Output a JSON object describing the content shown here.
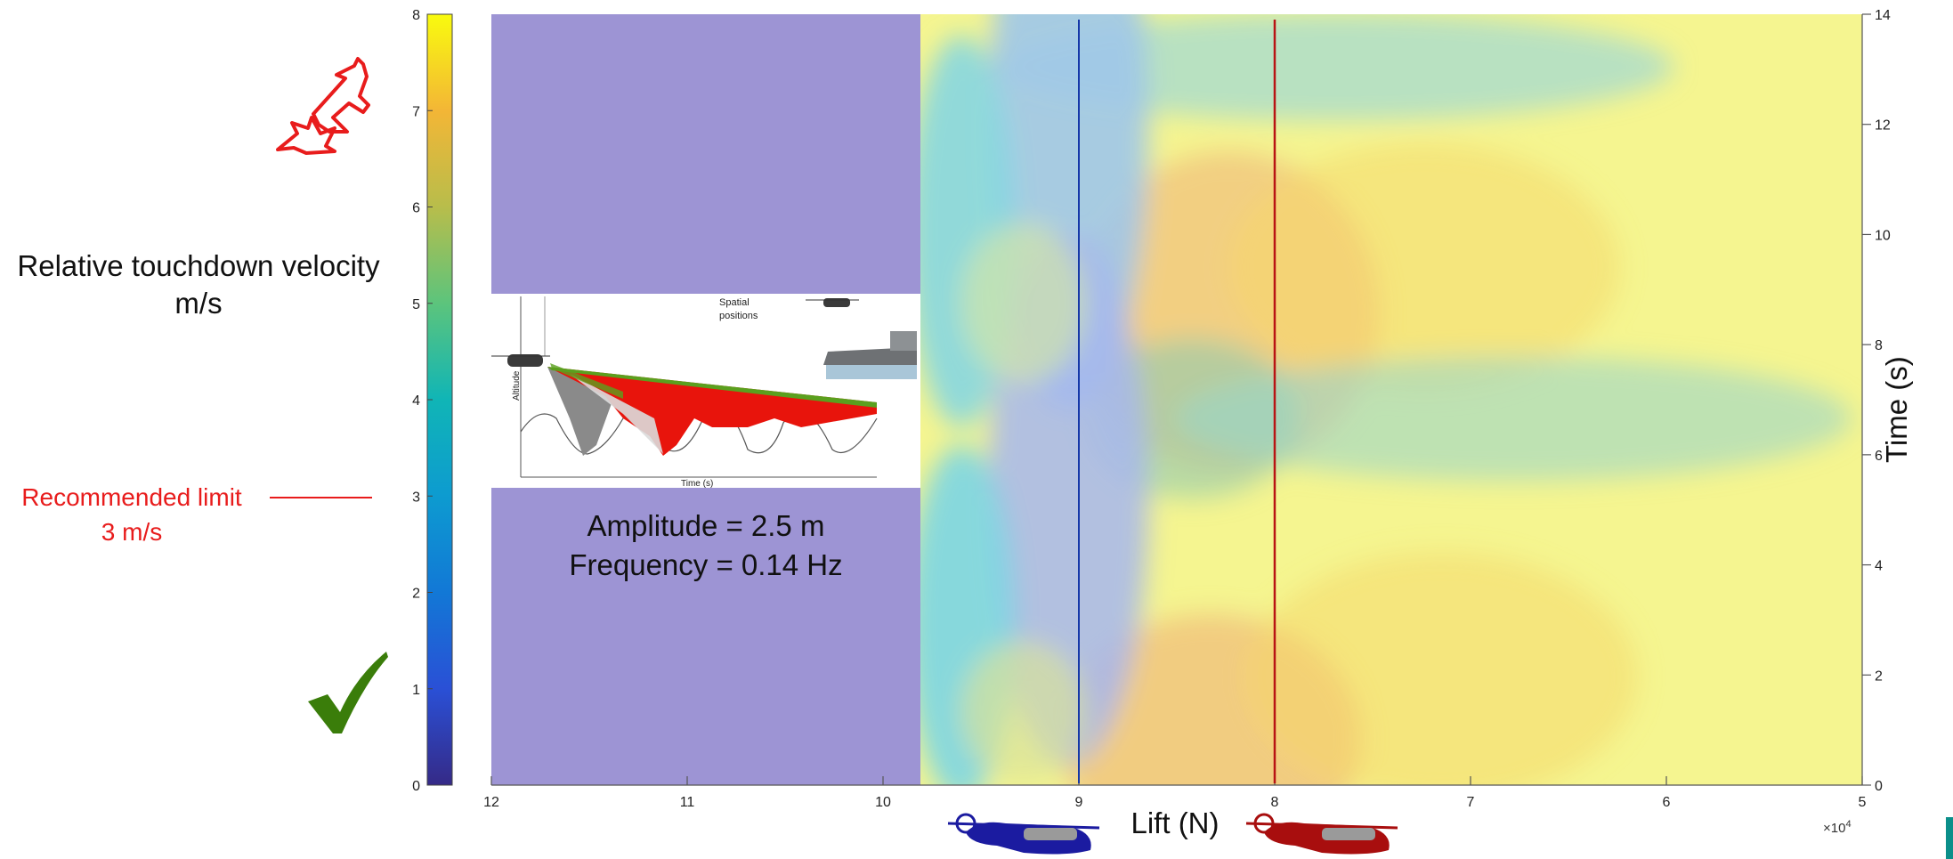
{
  "colors": {
    "limit_red": "#e81c1c",
    "check_green": "#3a7d0a",
    "purple_fill": "#9d94d4",
    "line_blue": "#1537a8",
    "line_red": "#b81414",
    "helicopter_blue": "#1b1ba0",
    "helicopter_red": "#a80e0e",
    "accent_teal": "#0b8f8a"
  },
  "icons": {
    "crash": "crashing-plane-icon",
    "ok": "checkmark-icon",
    "heli_blue": "blue-helicopter-icon",
    "heli_red": "red-helicopter-icon"
  },
  "labels": {
    "colorbar_title_line1": "Relative touchdown velocity",
    "colorbar_title_line2": "m/s",
    "limit_line1": "Recommended limit",
    "limit_line2": "3 m/s",
    "annotation_line1": "Amplitude = 2.5 m",
    "annotation_line2": "Frequency = 0.14 Hz"
  },
  "inset": {
    "title_line1": "Spatial",
    "title_line2": "positions",
    "ylabel": "Altitude",
    "xlabel": "Time (s)"
  },
  "chart_data": {
    "type": "heatmap",
    "title": "",
    "xlabel": "Lift (N)",
    "ylabel": "Time (s)",
    "x_multiplier_label": "×10",
    "x_multiplier_exp": "4",
    "xlim": [
      120000,
      50000
    ],
    "ylim": [
      0,
      14
    ],
    "x_ticks": [
      "12",
      "11",
      "10",
      "9",
      "8",
      "7",
      "6",
      "5"
    ],
    "x_tick_values": [
      120000,
      110000,
      100000,
      90000,
      80000,
      70000,
      60000,
      50000
    ],
    "y_ticks": [
      "0",
      "2",
      "4",
      "6",
      "8",
      "10",
      "12",
      "14"
    ],
    "y_tick_values": [
      0,
      2,
      4,
      6,
      8,
      10,
      12,
      14
    ],
    "colorbar": {
      "range": [
        0,
        8
      ],
      "ticks": [
        "0",
        "1",
        "2",
        "3",
        "4",
        "5",
        "6",
        "7",
        "8"
      ],
      "colormap": "parula"
    },
    "no_data_region_lift": [
      120000,
      98000
    ],
    "vertical_lines": [
      {
        "lift": 90000,
        "color": "#1537a8"
      },
      {
        "lift": 80000,
        "color": "#b81414"
      }
    ],
    "recommended_limit": 3,
    "grid": false
  }
}
